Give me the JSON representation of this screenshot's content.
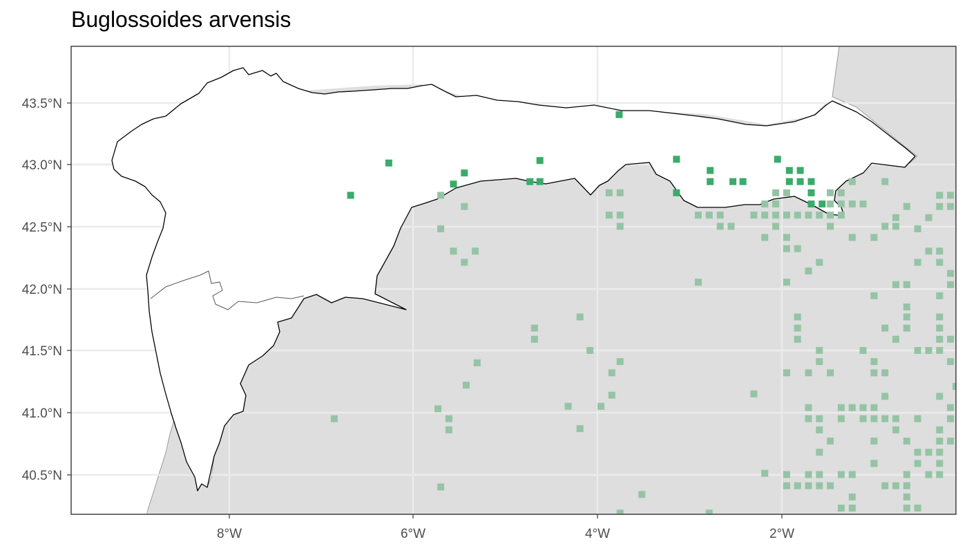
{
  "title": "Buglossoides arvensis",
  "colors": {
    "present": "#3aab6b",
    "other": "#95c4a5",
    "land_outside": "#dedede",
    "grid": "#ebebeb",
    "border": "#333333",
    "tick_label": "#4d4d4d"
  },
  "axes": {
    "x_ticks": [
      "8°W",
      "6°W",
      "4°W",
      "2°W"
    ],
    "y_ticks": [
      "43.5°N",
      "43.0°N",
      "42.5°N",
      "42.0°N",
      "41.5°N",
      "41.0°N",
      "40.5°N"
    ]
  },
  "chart_data": {
    "type": "scatter",
    "title": "Buglossoides arvensis",
    "xlim": [
      -9.72,
      0.0
    ],
    "ylim": [
      40.17,
      43.94
    ],
    "x_ticks": [
      -8,
      -6,
      -4,
      -2
    ],
    "y_ticks": [
      43.5,
      43.0,
      42.5,
      42.0,
      41.5,
      41.0,
      40.5
    ],
    "series": [
      {
        "points": [
          [
            -3.7,
            43.39
          ],
          [
            -6.23,
            43.0
          ],
          [
            -6.65,
            42.74
          ],
          [
            -5.4,
            42.92
          ],
          [
            -5.52,
            42.83
          ],
          [
            -4.57,
            43.02
          ],
          [
            -4.68,
            42.85
          ],
          [
            -4.57,
            42.85
          ],
          [
            -3.07,
            43.03
          ],
          [
            -3.07,
            42.76
          ],
          [
            -2.7,
            42.94
          ],
          [
            -2.7,
            42.85
          ],
          [
            -2.45,
            42.85
          ],
          [
            -2.34,
            42.85
          ],
          [
            -1.96,
            43.03
          ],
          [
            -1.83,
            42.94
          ],
          [
            -1.71,
            42.94
          ],
          [
            -1.83,
            42.85
          ],
          [
            -1.71,
            42.85
          ],
          [
            -1.59,
            42.85
          ],
          [
            -1.59,
            42.76
          ],
          [
            -1.47,
            42.67
          ],
          [
            -1.59,
            42.67
          ]
        ]
      },
      {
        "points": [
          [
            -5.66,
            42.74
          ],
          [
            -5.66,
            42.47
          ],
          [
            -5.4,
            42.65
          ],
          [
            -5.52,
            42.29
          ],
          [
            -5.28,
            42.29
          ],
          [
            -5.4,
            42.2
          ],
          [
            -3.81,
            42.76
          ],
          [
            -3.69,
            42.76
          ],
          [
            -3.81,
            42.58
          ],
          [
            -3.69,
            42.58
          ],
          [
            -3.69,
            42.49
          ],
          [
            -2.83,
            42.58
          ],
          [
            -2.71,
            42.58
          ],
          [
            -2.59,
            42.58
          ],
          [
            -2.59,
            42.49
          ],
          [
            -2.47,
            42.49
          ],
          [
            -2.22,
            42.58
          ],
          [
            -2.1,
            42.58
          ],
          [
            -1.98,
            42.58
          ],
          [
            -1.86,
            42.58
          ],
          [
            -1.74,
            42.58
          ],
          [
            -1.62,
            42.58
          ],
          [
            -1.5,
            42.58
          ],
          [
            -1.38,
            42.58
          ],
          [
            -1.26,
            42.58
          ],
          [
            -2.1,
            42.67
          ],
          [
            -1.98,
            42.67
          ],
          [
            -1.98,
            42.76
          ],
          [
            -1.86,
            42.76
          ],
          [
            -1.38,
            42.76
          ],
          [
            -1.26,
            42.76
          ],
          [
            -1.38,
            42.67
          ],
          [
            -1.26,
            42.67
          ],
          [
            -1.14,
            42.67
          ],
          [
            -1.02,
            42.67
          ],
          [
            -1.14,
            42.85
          ],
          [
            -0.78,
            42.85
          ],
          [
            -1.98,
            42.49
          ],
          [
            -1.86,
            42.4
          ],
          [
            -2.1,
            42.4
          ],
          [
            -1.86,
            42.31
          ],
          [
            -1.74,
            42.31
          ],
          [
            -1.38,
            42.49
          ],
          [
            -1.14,
            42.4
          ],
          [
            -0.9,
            42.4
          ],
          [
            -0.78,
            42.49
          ],
          [
            -0.66,
            42.49
          ],
          [
            -0.66,
            42.56
          ],
          [
            -0.42,
            42.47
          ],
          [
            -0.3,
            42.56
          ],
          [
            -0.18,
            42.65
          ],
          [
            -0.06,
            42.65
          ],
          [
            -0.06,
            42.74
          ],
          [
            -0.18,
            42.74
          ],
          [
            -0.54,
            42.65
          ],
          [
            -0.3,
            42.29
          ],
          [
            -0.18,
            42.29
          ],
          [
            -0.42,
            42.2
          ],
          [
            -0.18,
            42.2
          ],
          [
            -0.06,
            42.11
          ],
          [
            -0.06,
            42.02
          ],
          [
            -0.18,
            41.93
          ],
          [
            -0.66,
            42.02
          ],
          [
            -0.54,
            42.02
          ],
          [
            -0.9,
            41.93
          ],
          [
            -1.5,
            42.2
          ],
          [
            -1.62,
            42.13
          ],
          [
            -1.86,
            42.04
          ],
          [
            -2.83,
            42.04
          ],
          [
            -1.74,
            41.76
          ],
          [
            -1.74,
            41.67
          ],
          [
            -1.74,
            41.58
          ],
          [
            -1.5,
            41.49
          ],
          [
            -1.5,
            41.4
          ],
          [
            -1.62,
            41.31
          ],
          [
            -1.38,
            41.31
          ],
          [
            -1.86,
            41.31
          ],
          [
            -1.02,
            41.49
          ],
          [
            -0.9,
            41.4
          ],
          [
            -0.9,
            41.31
          ],
          [
            -0.78,
            41.31
          ],
          [
            -0.54,
            41.84
          ],
          [
            -0.54,
            41.76
          ],
          [
            -0.54,
            41.67
          ],
          [
            -0.78,
            41.67
          ],
          [
            -0.66,
            41.58
          ],
          [
            -0.42,
            41.49
          ],
          [
            -0.3,
            41.49
          ],
          [
            -0.18,
            41.49
          ],
          [
            -0.18,
            41.58
          ],
          [
            -0.18,
            41.67
          ],
          [
            -0.18,
            41.76
          ],
          [
            -0.06,
            41.58
          ],
          [
            -0.06,
            41.4
          ],
          [
            0.0,
            41.2
          ],
          [
            -0.18,
            41.12
          ],
          [
            -0.78,
            41.12
          ],
          [
            -0.06,
            41.03
          ],
          [
            -0.06,
            40.94
          ],
          [
            -0.42,
            40.94
          ],
          [
            -0.66,
            40.94
          ],
          [
            -0.78,
            40.94
          ],
          [
            -0.9,
            40.94
          ],
          [
            -1.02,
            40.94
          ],
          [
            -1.26,
            40.94
          ],
          [
            -1.5,
            40.94
          ],
          [
            -1.62,
            40.94
          ],
          [
            -1.62,
            41.03
          ],
          [
            -1.26,
            41.03
          ],
          [
            -1.14,
            41.03
          ],
          [
            -1.02,
            41.03
          ],
          [
            -0.9,
            41.03
          ],
          [
            -1.5,
            40.85
          ],
          [
            -1.38,
            40.76
          ],
          [
            -1.5,
            40.67
          ],
          [
            -0.9,
            40.76
          ],
          [
            -0.9,
            40.58
          ],
          [
            -0.54,
            40.76
          ],
          [
            -0.66,
            40.85
          ],
          [
            -0.18,
            40.85
          ],
          [
            -0.18,
            40.76
          ],
          [
            -0.06,
            40.76
          ],
          [
            -0.18,
            40.67
          ],
          [
            -0.3,
            40.67
          ],
          [
            -0.42,
            40.67
          ],
          [
            -0.42,
            40.58
          ],
          [
            -0.18,
            40.58
          ],
          [
            -0.18,
            40.49
          ],
          [
            -0.3,
            40.49
          ],
          [
            -0.54,
            40.49
          ],
          [
            -0.54,
            40.4
          ],
          [
            -0.66,
            40.4
          ],
          [
            -0.54,
            40.31
          ],
          [
            -0.42,
            40.22
          ],
          [
            -0.54,
            40.22
          ],
          [
            -1.5,
            40.49
          ],
          [
            -1.62,
            40.49
          ],
          [
            -1.86,
            40.49
          ],
          [
            -1.26,
            40.49
          ],
          [
            -1.14,
            40.49
          ],
          [
            -1.86,
            40.4
          ],
          [
            -1.74,
            40.4
          ],
          [
            -1.62,
            40.4
          ],
          [
            -1.5,
            40.4
          ],
          [
            -1.38,
            40.4
          ],
          [
            -1.26,
            40.22
          ],
          [
            -1.14,
            40.22
          ],
          [
            -1.14,
            40.31
          ],
          [
            -0.78,
            40.4
          ],
          [
            -0.9,
            40.58
          ],
          [
            -2.22,
            41.14
          ],
          [
            -2.1,
            40.5
          ],
          [
            -4.13,
            41.76
          ],
          [
            -4.02,
            41.49
          ],
          [
            -3.69,
            41.4
          ],
          [
            -3.78,
            41.31
          ],
          [
            -3.78,
            41.13
          ],
          [
            -3.9,
            41.04
          ],
          [
            -4.26,
            41.04
          ],
          [
            -4.13,
            40.86
          ],
          [
            -4.63,
            41.67
          ],
          [
            -4.63,
            41.58
          ],
          [
            -5.26,
            41.39
          ],
          [
            -5.38,
            41.21
          ],
          [
            -5.69,
            41.02
          ],
          [
            -5.57,
            40.94
          ],
          [
            -5.57,
            40.85
          ],
          [
            -6.83,
            40.94
          ],
          [
            -5.66,
            40.39
          ],
          [
            -3.45,
            40.33
          ],
          [
            -3.69,
            40.18
          ],
          [
            -2.71,
            40.18
          ]
        ]
      }
    ]
  }
}
